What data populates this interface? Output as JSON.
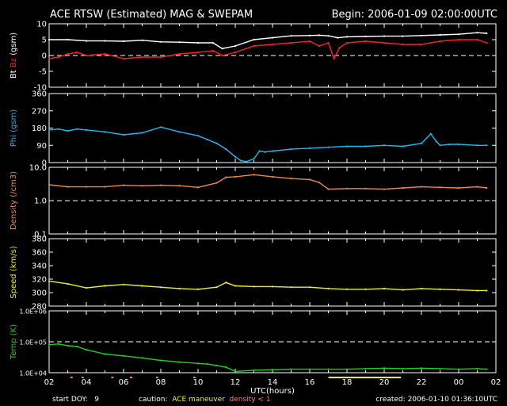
{
  "header": {
    "title": "ACE RTSW (Estimated) MAG & SWEPAM",
    "begin_label": "Begin:",
    "begin_value": "2006-01-09 02:00:00UTC"
  },
  "footer": {
    "start_doy_label": "start DOY:",
    "start_doy_value": "9",
    "caution_label": "caution:",
    "maneuver_text": "ACE maneuver",
    "density_text": "density < 1",
    "created_label": "created:",
    "created_value": "2006-01-10 01:36:10UTC"
  },
  "colors": {
    "bt": "#ffffff",
    "bz": "#ff2020",
    "phi": "#20b8f0",
    "density": "#f08848",
    "speed": "#f0f020",
    "temp": "#20d020",
    "maneuver": "#f0f020",
    "caution_density": "#f08848"
  },
  "chart_data": {
    "type": "line",
    "title": "ACE RTSW (Estimated) MAG & SWEPAM",
    "xlabel": "UTC(hours)",
    "xlim": [
      2,
      26
    ],
    "x_tick_labels": [
      "02",
      "04",
      "06",
      "08",
      "10",
      "12",
      "14",
      "16",
      "18",
      "20",
      "22",
      "00",
      "02"
    ],
    "maneuver_hours": [
      17.0,
      20.9
    ],
    "panels": [
      {
        "id": "mag",
        "ylabel": "Bt  Bz  (gsm)",
        "ylabel_parts": [
          {
            "text": "Bt",
            "color": "#ffffff"
          },
          {
            "text": "Bz",
            "color": "#ff2020"
          },
          {
            "text": "(gsm)",
            "color": "#ffffff"
          }
        ],
        "scale": "linear",
        "ylim": [
          -10,
          10
        ],
        "y_ticks": [
          10,
          5,
          0,
          -5,
          -10
        ],
        "y_tick_labels": [
          "10",
          "5",
          "0",
          "-5",
          "-10"
        ],
        "dashed_lines": [
          0
        ],
        "series": [
          {
            "name": "Bt",
            "color": "#ffffff",
            "x": [
              2,
              3,
              4,
              5,
              6,
              7,
              8,
              9,
              10,
              10.8,
              11.3,
              12,
              13,
              14,
              15,
              16,
              16.5,
              17,
              17.5,
              18,
              19,
              20,
              21,
              22,
              23,
              24,
              25,
              25.5
            ],
            "y": [
              5,
              5,
              4.6,
              4.6,
              4.5,
              4.8,
              4.3,
              4.2,
              4.0,
              4.0,
              2.2,
              3.0,
              5.0,
              5.6,
              6.2,
              6.3,
              6.4,
              6.2,
              5.6,
              5.9,
              6.0,
              6.1,
              6.1,
              6.3,
              6.5,
              6.7,
              7.2,
              7.0
            ]
          },
          {
            "name": "Bz",
            "color": "#ff2020",
            "x": [
              2,
              2.5,
              3,
              3.5,
              4,
              5,
              6,
              7,
              8,
              9,
              10,
              10.8,
              11.3,
              12,
              13,
              14,
              15,
              16,
              16.5,
              17,
              17.3,
              17.6,
              18,
              19,
              20,
              21,
              22,
              23,
              24,
              25,
              25.5
            ],
            "y": [
              -1,
              -0.5,
              0.5,
              1,
              0,
              0.5,
              -1,
              -0.5,
              -0.5,
              0.5,
              1,
              1.5,
              0,
              1,
              3,
              3.5,
              4,
              4.5,
              3,
              4,
              -1,
              2.5,
              4,
              4.5,
              4,
              3.5,
              3.5,
              4.5,
              5,
              5,
              4
            ]
          }
        ]
      },
      {
        "id": "phi",
        "ylabel": "Phi (gsm)",
        "scale": "linear",
        "ylim": [
          0,
          360
        ],
        "y_ticks": [
          360,
          270,
          180,
          90,
          0
        ],
        "y_tick_labels": [
          "360",
          "270",
          "180",
          "90",
          "0"
        ],
        "series": [
          {
            "name": "Phi",
            "color": "#20b8f0",
            "x": [
              2,
              2.5,
              3,
              3.5,
              4,
              5,
              6,
              7,
              8,
              9,
              10,
              10.5,
              11,
              11.5,
              12,
              12.3,
              12.6,
              13,
              13.3,
              13.6,
              14,
              15,
              16,
              17,
              18,
              19,
              20,
              21,
              22,
              22.5,
              22.8,
              23,
              23.5,
              24,
              25,
              25.5
            ],
            "y": [
              170,
              175,
              165,
              175,
              170,
              160,
              145,
              155,
              185,
              160,
              140,
              120,
              100,
              70,
              30,
              10,
              5,
              20,
              60,
              55,
              60,
              70,
              75,
              80,
              85,
              85,
              90,
              85,
              100,
              150,
              110,
              90,
              95,
              95,
              90,
              90
            ]
          }
        ]
      },
      {
        "id": "density",
        "ylabel": "Density (/cm3)",
        "scale": "log",
        "ylim": [
          0.1,
          10
        ],
        "y_ticks": [
          10,
          1,
          0.1
        ],
        "y_tick_labels": [
          "10.0",
          "1.0",
          "0.1"
        ],
        "dashed_lines": [
          1
        ],
        "series": [
          {
            "name": "Density",
            "color": "#f08848",
            "x": [
              2,
              3,
              4,
              5,
              6,
              7,
              8,
              9,
              10,
              11,
              11.5,
              12,
              13,
              14,
              15,
              16,
              16.5,
              17,
              18,
              19,
              20,
              21,
              22,
              23,
              24,
              25,
              25.5
            ],
            "y": [
              3,
              2.6,
              2.6,
              2.6,
              2.9,
              2.8,
              2.9,
              2.8,
              2.5,
              3.4,
              5,
              5.2,
              6.0,
              5.2,
              4.6,
              4.3,
              3.5,
              2.2,
              2.3,
              2.3,
              2.2,
              2.4,
              2.6,
              2.5,
              2.4,
              2.6,
              2.4
            ]
          }
        ]
      },
      {
        "id": "speed",
        "ylabel": "Speed (km/s)",
        "scale": "linear",
        "ylim": [
          280,
          380
        ],
        "y_ticks": [
          380,
          360,
          340,
          320,
          300,
          280
        ],
        "y_tick_labels": [
          "380",
          "360",
          "340",
          "320",
          "300",
          "280"
        ],
        "series": [
          {
            "name": "Speed",
            "color": "#f0f020",
            "x": [
              2,
              3,
              4,
              5,
              6,
              7,
              8,
              9,
              10,
              11,
              11.5,
              12,
              13,
              14,
              15,
              16,
              17,
              18,
              19,
              20,
              21,
              22,
              23,
              24,
              25,
              25.5
            ],
            "y": [
              317,
              313,
              307,
              310,
              312,
              310,
              308,
              306,
              305,
              308,
              315,
              310,
              309,
              309,
              308,
              308,
              306,
              305,
              305,
              306,
              304,
              306,
              305,
              304,
              303,
              303
            ]
          }
        ]
      },
      {
        "id": "temp",
        "ylabel": "Temp (K)",
        "scale": "log",
        "ylim": [
          10000,
          1000000
        ],
        "y_ticks": [
          1000000,
          100000,
          10000
        ],
        "y_tick_labels": [
          "1.0E+06",
          "1.0E+05",
          "1.0E+04"
        ],
        "dashed_lines": [
          100000
        ],
        "series": [
          {
            "name": "Temp",
            "color": "#20d020",
            "x": [
              2,
              2.5,
              3,
              3.5,
              4,
              5,
              6,
              7,
              8,
              9,
              10,
              10.5,
              11,
              11.5,
              12,
              13,
              14,
              15,
              16,
              17,
              18,
              19,
              20,
              21,
              22,
              23,
              24,
              25,
              25.5
            ],
            "y": [
              80000,
              85000,
              75000,
              70000,
              55000,
              40000,
              35000,
              30000,
              25000,
              22000,
              20000,
              19000,
              17000,
              15000,
              11000,
              12000,
              12500,
              13000,
              13000,
              13000,
              13000,
              13500,
              14000,
              13500,
              14000,
              13500,
              13000,
              13500,
              13000
            ]
          }
        ]
      }
    ]
  }
}
